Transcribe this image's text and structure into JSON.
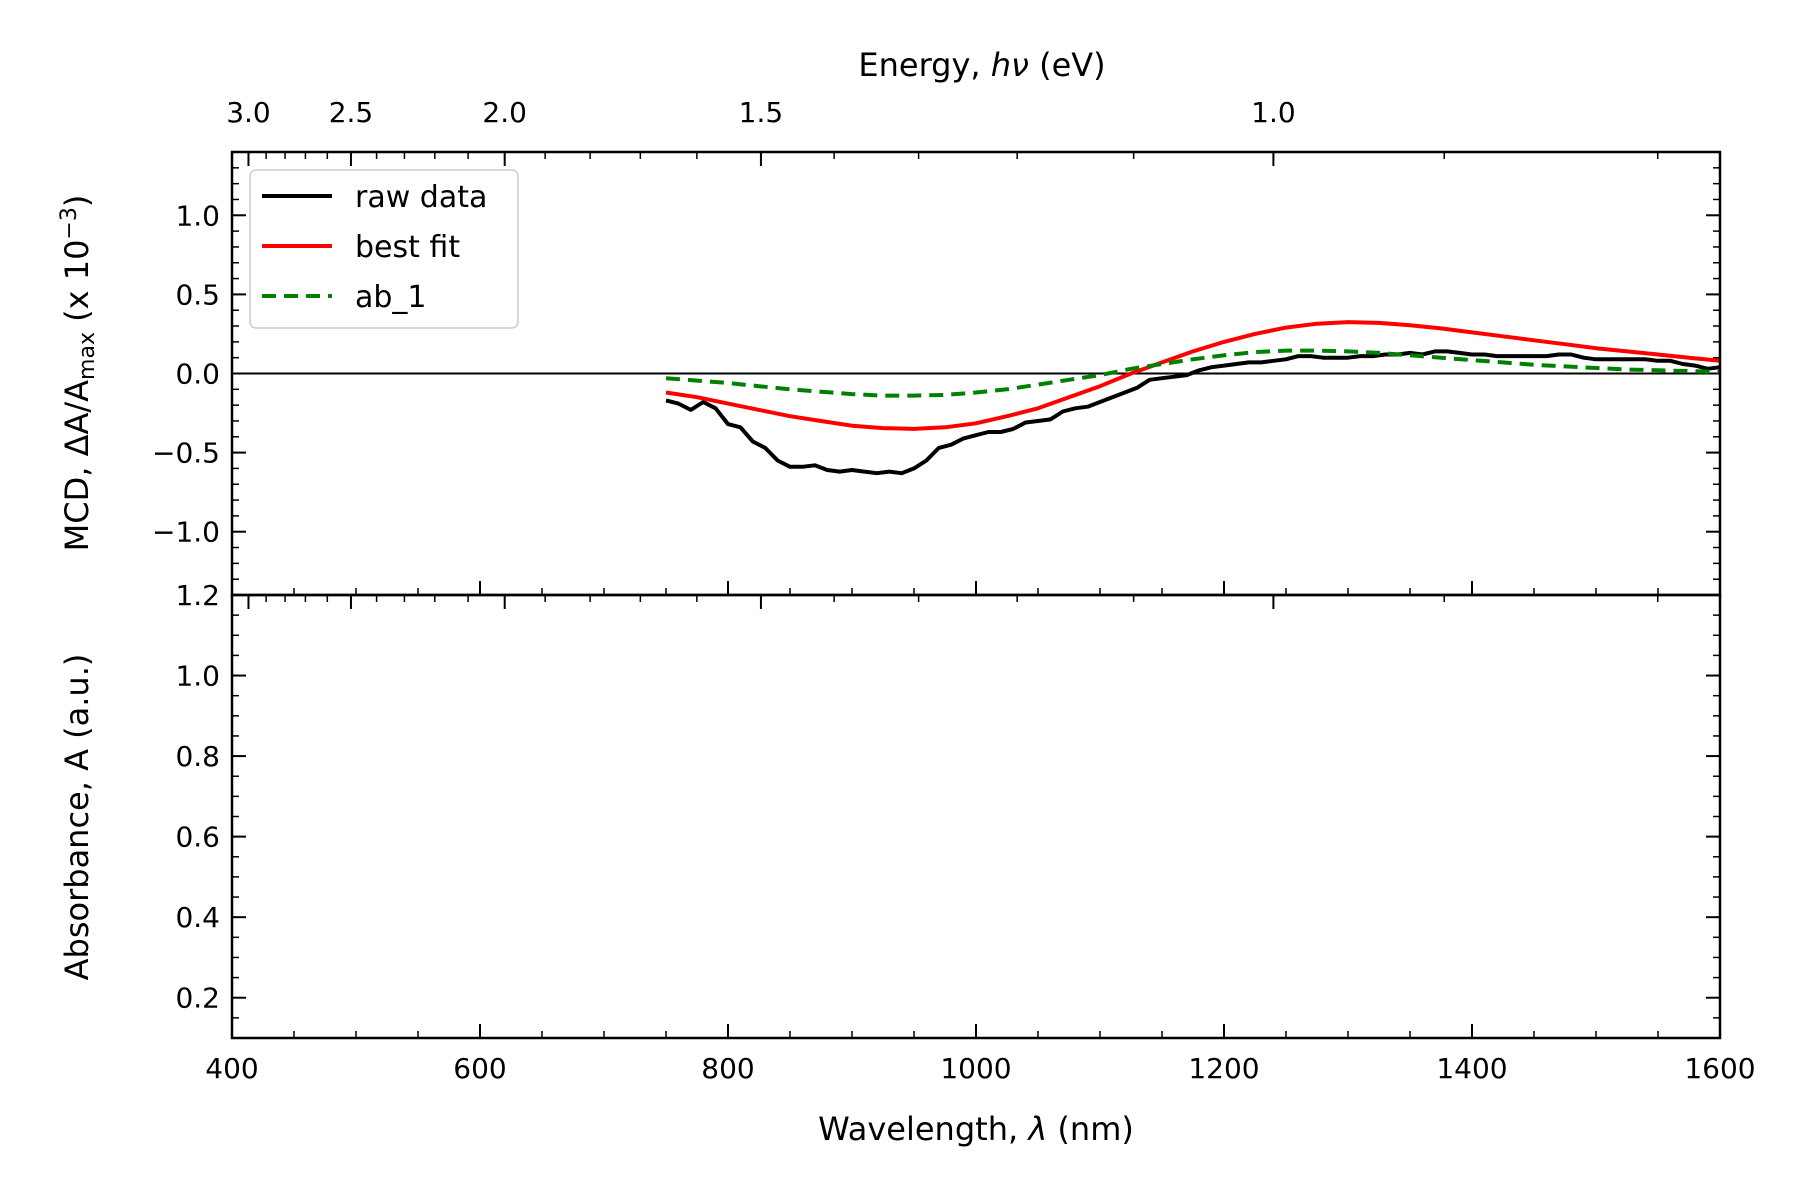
{
  "chart_data": [
    {
      "type": "line",
      "panel": "top",
      "ylabel_main": "MCD, ΔA/A",
      "ylabel_sub": "max",
      "ylabel_tail": " (x 10",
      "ylabel_exp": "−3",
      "ylabel_close": ")",
      "top_axis_label_prefix": "Energy, ",
      "top_axis_label_symbol": "hν",
      "top_axis_label_unit": " (eV)",
      "top_axis_ticks": [
        {
          "value": 3.0,
          "label": "3.0"
        },
        {
          "value": 2.5,
          "label": "2.5"
        },
        {
          "value": 2.0,
          "label": "2.0"
        },
        {
          "value": 1.5,
          "label": "1.5"
        },
        {
          "value": 1.0,
          "label": "1.0"
        }
      ],
      "xlim": [
        400,
        1600
      ],
      "ylim": [
        -1.4,
        1.4
      ],
      "yticks": [
        {
          "value": 1.0,
          "label": "1.0"
        },
        {
          "value": 0.5,
          "label": "0.5"
        },
        {
          "value": 0.0,
          "label": "0.0"
        },
        {
          "value": -0.5,
          "label": "−0.5"
        },
        {
          "value": -1.0,
          "label": "−1.0"
        }
      ],
      "zero_line": true,
      "legend_position": "top-left",
      "series": [
        {
          "name": "raw data",
          "color": "#000000",
          "style": "solid",
          "points": [
            [
              750,
              -0.17
            ],
            [
              760,
              -0.19
            ],
            [
              770,
              -0.23
            ],
            [
              780,
              -0.18
            ],
            [
              790,
              -0.22
            ],
            [
              800,
              -0.32
            ],
            [
              810,
              -0.34
            ],
            [
              820,
              -0.43
            ],
            [
              830,
              -0.47
            ],
            [
              840,
              -0.55
            ],
            [
              850,
              -0.59
            ],
            [
              860,
              -0.59
            ],
            [
              870,
              -0.58
            ],
            [
              880,
              -0.61
            ],
            [
              890,
              -0.62
            ],
            [
              900,
              -0.61
            ],
            [
              910,
              -0.62
            ],
            [
              920,
              -0.63
            ],
            [
              930,
              -0.62
            ],
            [
              940,
              -0.63
            ],
            [
              950,
              -0.6
            ],
            [
              960,
              -0.55
            ],
            [
              970,
              -0.47
            ],
            [
              980,
              -0.45
            ],
            [
              990,
              -0.41
            ],
            [
              1000,
              -0.39
            ],
            [
              1010,
              -0.37
            ],
            [
              1020,
              -0.37
            ],
            [
              1030,
              -0.35
            ],
            [
              1040,
              -0.31
            ],
            [
              1050,
              -0.3
            ],
            [
              1060,
              -0.29
            ],
            [
              1070,
              -0.24
            ],
            [
              1080,
              -0.22
            ],
            [
              1090,
              -0.21
            ],
            [
              1100,
              -0.18
            ],
            [
              1110,
              -0.15
            ],
            [
              1120,
              -0.12
            ],
            [
              1130,
              -0.09
            ],
            [
              1140,
              -0.04
            ],
            [
              1150,
              -0.03
            ],
            [
              1160,
              -0.02
            ],
            [
              1170,
              -0.01
            ],
            [
              1180,
              0.02
            ],
            [
              1190,
              0.04
            ],
            [
              1200,
              0.05
            ],
            [
              1210,
              0.06
            ],
            [
              1220,
              0.07
            ],
            [
              1230,
              0.07
            ],
            [
              1240,
              0.08
            ],
            [
              1250,
              0.09
            ],
            [
              1260,
              0.11
            ],
            [
              1270,
              0.11
            ],
            [
              1280,
              0.1
            ],
            [
              1290,
              0.1
            ],
            [
              1300,
              0.1
            ],
            [
              1310,
              0.11
            ],
            [
              1320,
              0.11
            ],
            [
              1330,
              0.12
            ],
            [
              1340,
              0.12
            ],
            [
              1350,
              0.13
            ],
            [
              1360,
              0.12
            ],
            [
              1370,
              0.14
            ],
            [
              1380,
              0.14
            ],
            [
              1390,
              0.13
            ],
            [
              1400,
              0.12
            ],
            [
              1410,
              0.12
            ],
            [
              1420,
              0.11
            ],
            [
              1430,
              0.11
            ],
            [
              1440,
              0.11
            ],
            [
              1450,
              0.11
            ],
            [
              1460,
              0.11
            ],
            [
              1470,
              0.12
            ],
            [
              1480,
              0.12
            ],
            [
              1490,
              0.1
            ],
            [
              1500,
              0.09
            ],
            [
              1510,
              0.09
            ],
            [
              1520,
              0.09
            ],
            [
              1530,
              0.09
            ],
            [
              1540,
              0.09
            ],
            [
              1550,
              0.08
            ],
            [
              1560,
              0.08
            ],
            [
              1570,
              0.06
            ],
            [
              1580,
              0.05
            ],
            [
              1590,
              0.03
            ],
            [
              1600,
              0.04
            ]
          ]
        },
        {
          "name": "best fit",
          "color": "#ff0000",
          "style": "solid",
          "points": [
            [
              750,
              -0.12
            ],
            [
              775,
              -0.15
            ],
            [
              800,
              -0.19
            ],
            [
              825,
              -0.23
            ],
            [
              850,
              -0.27
            ],
            [
              875,
              -0.3
            ],
            [
              900,
              -0.33
            ],
            [
              925,
              -0.345
            ],
            [
              950,
              -0.35
            ],
            [
              975,
              -0.34
            ],
            [
              1000,
              -0.315
            ],
            [
              1025,
              -0.27
            ],
            [
              1050,
              -0.22
            ],
            [
              1075,
              -0.15
            ],
            [
              1100,
              -0.08
            ],
            [
              1125,
              0.0
            ],
            [
              1150,
              0.07
            ],
            [
              1175,
              0.14
            ],
            [
              1200,
              0.2
            ],
            [
              1225,
              0.25
            ],
            [
              1250,
              0.29
            ],
            [
              1275,
              0.315
            ],
            [
              1300,
              0.325
            ],
            [
              1325,
              0.32
            ],
            [
              1350,
              0.305
            ],
            [
              1375,
              0.285
            ],
            [
              1400,
              0.26
            ],
            [
              1425,
              0.235
            ],
            [
              1450,
              0.21
            ],
            [
              1475,
              0.185
            ],
            [
              1500,
              0.16
            ],
            [
              1525,
              0.14
            ],
            [
              1550,
              0.12
            ],
            [
              1575,
              0.1
            ],
            [
              1600,
              0.08
            ]
          ]
        },
        {
          "name": "ab_1",
          "color": "#008000",
          "style": "dashed",
          "points": [
            [
              750,
              -0.03
            ],
            [
              775,
              -0.045
            ],
            [
              800,
              -0.06
            ],
            [
              825,
              -0.08
            ],
            [
              850,
              -0.1
            ],
            [
              875,
              -0.115
            ],
            [
              900,
              -0.13
            ],
            [
              925,
              -0.14
            ],
            [
              950,
              -0.14
            ],
            [
              975,
              -0.135
            ],
            [
              1000,
              -0.12
            ],
            [
              1025,
              -0.1
            ],
            [
              1050,
              -0.07
            ],
            [
              1075,
              -0.04
            ],
            [
              1100,
              -0.01
            ],
            [
              1125,
              0.03
            ],
            [
              1150,
              0.06
            ],
            [
              1175,
              0.09
            ],
            [
              1200,
              0.115
            ],
            [
              1225,
              0.135
            ],
            [
              1250,
              0.145
            ],
            [
              1275,
              0.145
            ],
            [
              1300,
              0.14
            ],
            [
              1325,
              0.13
            ],
            [
              1350,
              0.115
            ],
            [
              1375,
              0.1
            ],
            [
              1400,
              0.085
            ],
            [
              1425,
              0.07
            ],
            [
              1450,
              0.055
            ],
            [
              1475,
              0.045
            ],
            [
              1500,
              0.035
            ],
            [
              1525,
              0.025
            ],
            [
              1550,
              0.02
            ],
            [
              1575,
              0.015
            ],
            [
              1600,
              0.01
            ]
          ]
        }
      ]
    },
    {
      "type": "line",
      "panel": "bottom",
      "ylabel": "Absorbance, A (a.u.)",
      "xlabel_prefix": "Wavelength, ",
      "xlabel_symbol": "λ",
      "xlabel_unit": " (nm)",
      "xlim": [
        400,
        1600
      ],
      "ylim": [
        0.1,
        1.2
      ],
      "xticks": [
        {
          "value": 400,
          "label": "400"
        },
        {
          "value": 600,
          "label": "600"
        },
        {
          "value": 800,
          "label": "800"
        },
        {
          "value": 1000,
          "label": "1000"
        },
        {
          "value": 1200,
          "label": "1200"
        },
        {
          "value": 1400,
          "label": "1400"
        },
        {
          "value": 1600,
          "label": "1600"
        }
      ],
      "yticks": [
        {
          "value": 1.2,
          "label": "1.2"
        },
        {
          "value": 1.0,
          "label": "1.0"
        },
        {
          "value": 0.8,
          "label": "0.8"
        },
        {
          "value": 0.6,
          "label": "0.6"
        },
        {
          "value": 0.4,
          "label": "0.4"
        },
        {
          "value": 0.2,
          "label": "0.2"
        }
      ],
      "series": []
    }
  ]
}
